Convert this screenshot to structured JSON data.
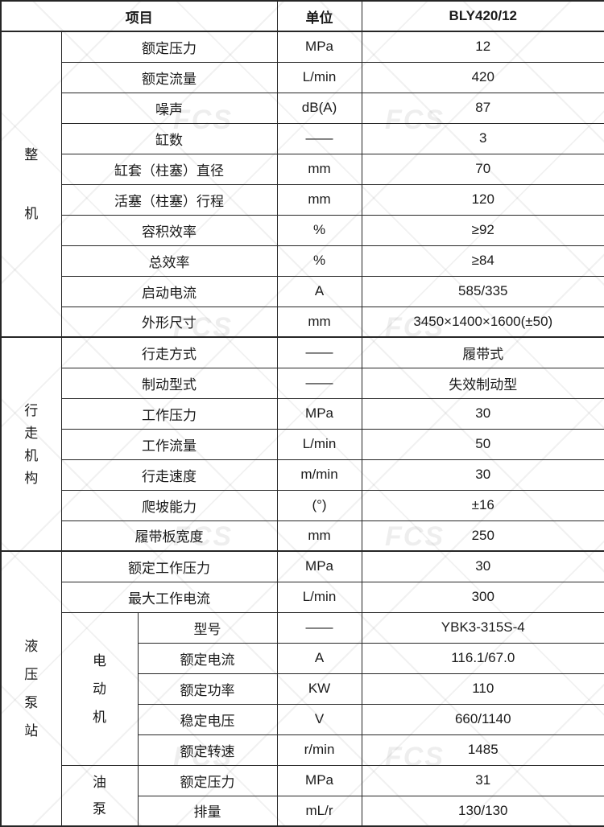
{
  "watermark": {
    "text": "FCS"
  },
  "table": {
    "header": {
      "item": "项目",
      "unit": "单位",
      "model": "BLY420/12"
    },
    "sections": [
      {
        "group": "整机",
        "rows": [
          {
            "label": "额定压力",
            "unit": "MPa",
            "value": "12"
          },
          {
            "label": "额定流量",
            "unit": "L/min",
            "value": "420"
          },
          {
            "label": "噪声",
            "unit": "dB(A)",
            "value": "87"
          },
          {
            "label": "缸数",
            "unit": "——",
            "value": "3"
          },
          {
            "label": "缸套（柱塞）直径",
            "unit": "mm",
            "value": "70"
          },
          {
            "label": "活塞（柱塞）行程",
            "unit": "mm",
            "value": "120"
          },
          {
            "label": "容积效率",
            "unit": "%",
            "value": "≥92"
          },
          {
            "label": "总效率",
            "unit": "%",
            "value": "≥84"
          },
          {
            "label": "启动电流",
            "unit": "A",
            "value": "585/335"
          },
          {
            "label": "外形尺寸",
            "unit": "mm",
            "value": "3450×1400×1600(±50)"
          }
        ]
      },
      {
        "group": "行走机构",
        "rows": [
          {
            "label": "行走方式",
            "unit": "——",
            "value": "履带式"
          },
          {
            "label": "制动型式",
            "unit": "——",
            "value": "失效制动型"
          },
          {
            "label": "工作压力",
            "unit": "MPa",
            "value": "30"
          },
          {
            "label": "工作流量",
            "unit": "L/min",
            "value": "50"
          },
          {
            "label": "行走速度",
            "unit": "m/min",
            "value": "30"
          },
          {
            "label": "爬坡能力",
            "unit": "(°)",
            "value": "±16"
          },
          {
            "label": "履带板宽度",
            "unit": "mm",
            "value": "250"
          }
        ]
      },
      {
        "group": "液压泵站",
        "rows": [
          {
            "label": "额定工作压力",
            "unit": "MPa",
            "value": "30"
          },
          {
            "label": "最大工作电流",
            "unit": "L/min",
            "value": "300"
          }
        ],
        "subgroups": [
          {
            "group": "电动机",
            "rows": [
              {
                "label": "型号",
                "unit": "——",
                "value": "YBK3-315S-4"
              },
              {
                "label": "额定电流",
                "unit": "A",
                "value": "116.1/67.0"
              },
              {
                "label": "额定功率",
                "unit": "KW",
                "value": "110"
              },
              {
                "label": "稳定电压",
                "unit": "V",
                "value": "660/1140"
              },
              {
                "label": "额定转速",
                "unit": "r/min",
                "value": "1485"
              }
            ]
          },
          {
            "group": "油泵",
            "rows": [
              {
                "label": "额定压力",
                "unit": "MPa",
                "value": "31"
              },
              {
                "label": "排量",
                "unit": "mL/r",
                "value": "130/130"
              }
            ]
          }
        ]
      }
    ]
  }
}
